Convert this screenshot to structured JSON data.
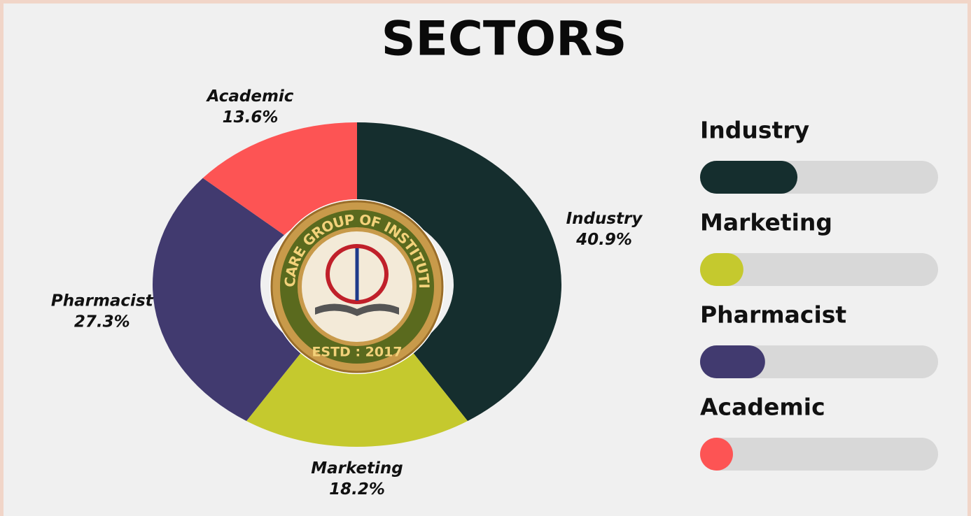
{
  "chart_data": {
    "type": "pie",
    "title": "SECTORS",
    "categories": [
      "Industry",
      "Marketing",
      "Pharmacist",
      "Academic"
    ],
    "values": [
      40.9,
      18.2,
      27.3,
      13.6
    ],
    "value_labels": [
      "40.9%",
      "18.2%",
      "27.3%",
      "13.6%"
    ],
    "colors": [
      "#152e2e",
      "#c5c92e",
      "#413a6f",
      "#fd5454"
    ],
    "hole": true,
    "center_logo": {
      "ring_text": "NEMCARE GROUP OF INSTITUTIONS",
      "bottom_text": "ESTD : 2017"
    }
  }
}
